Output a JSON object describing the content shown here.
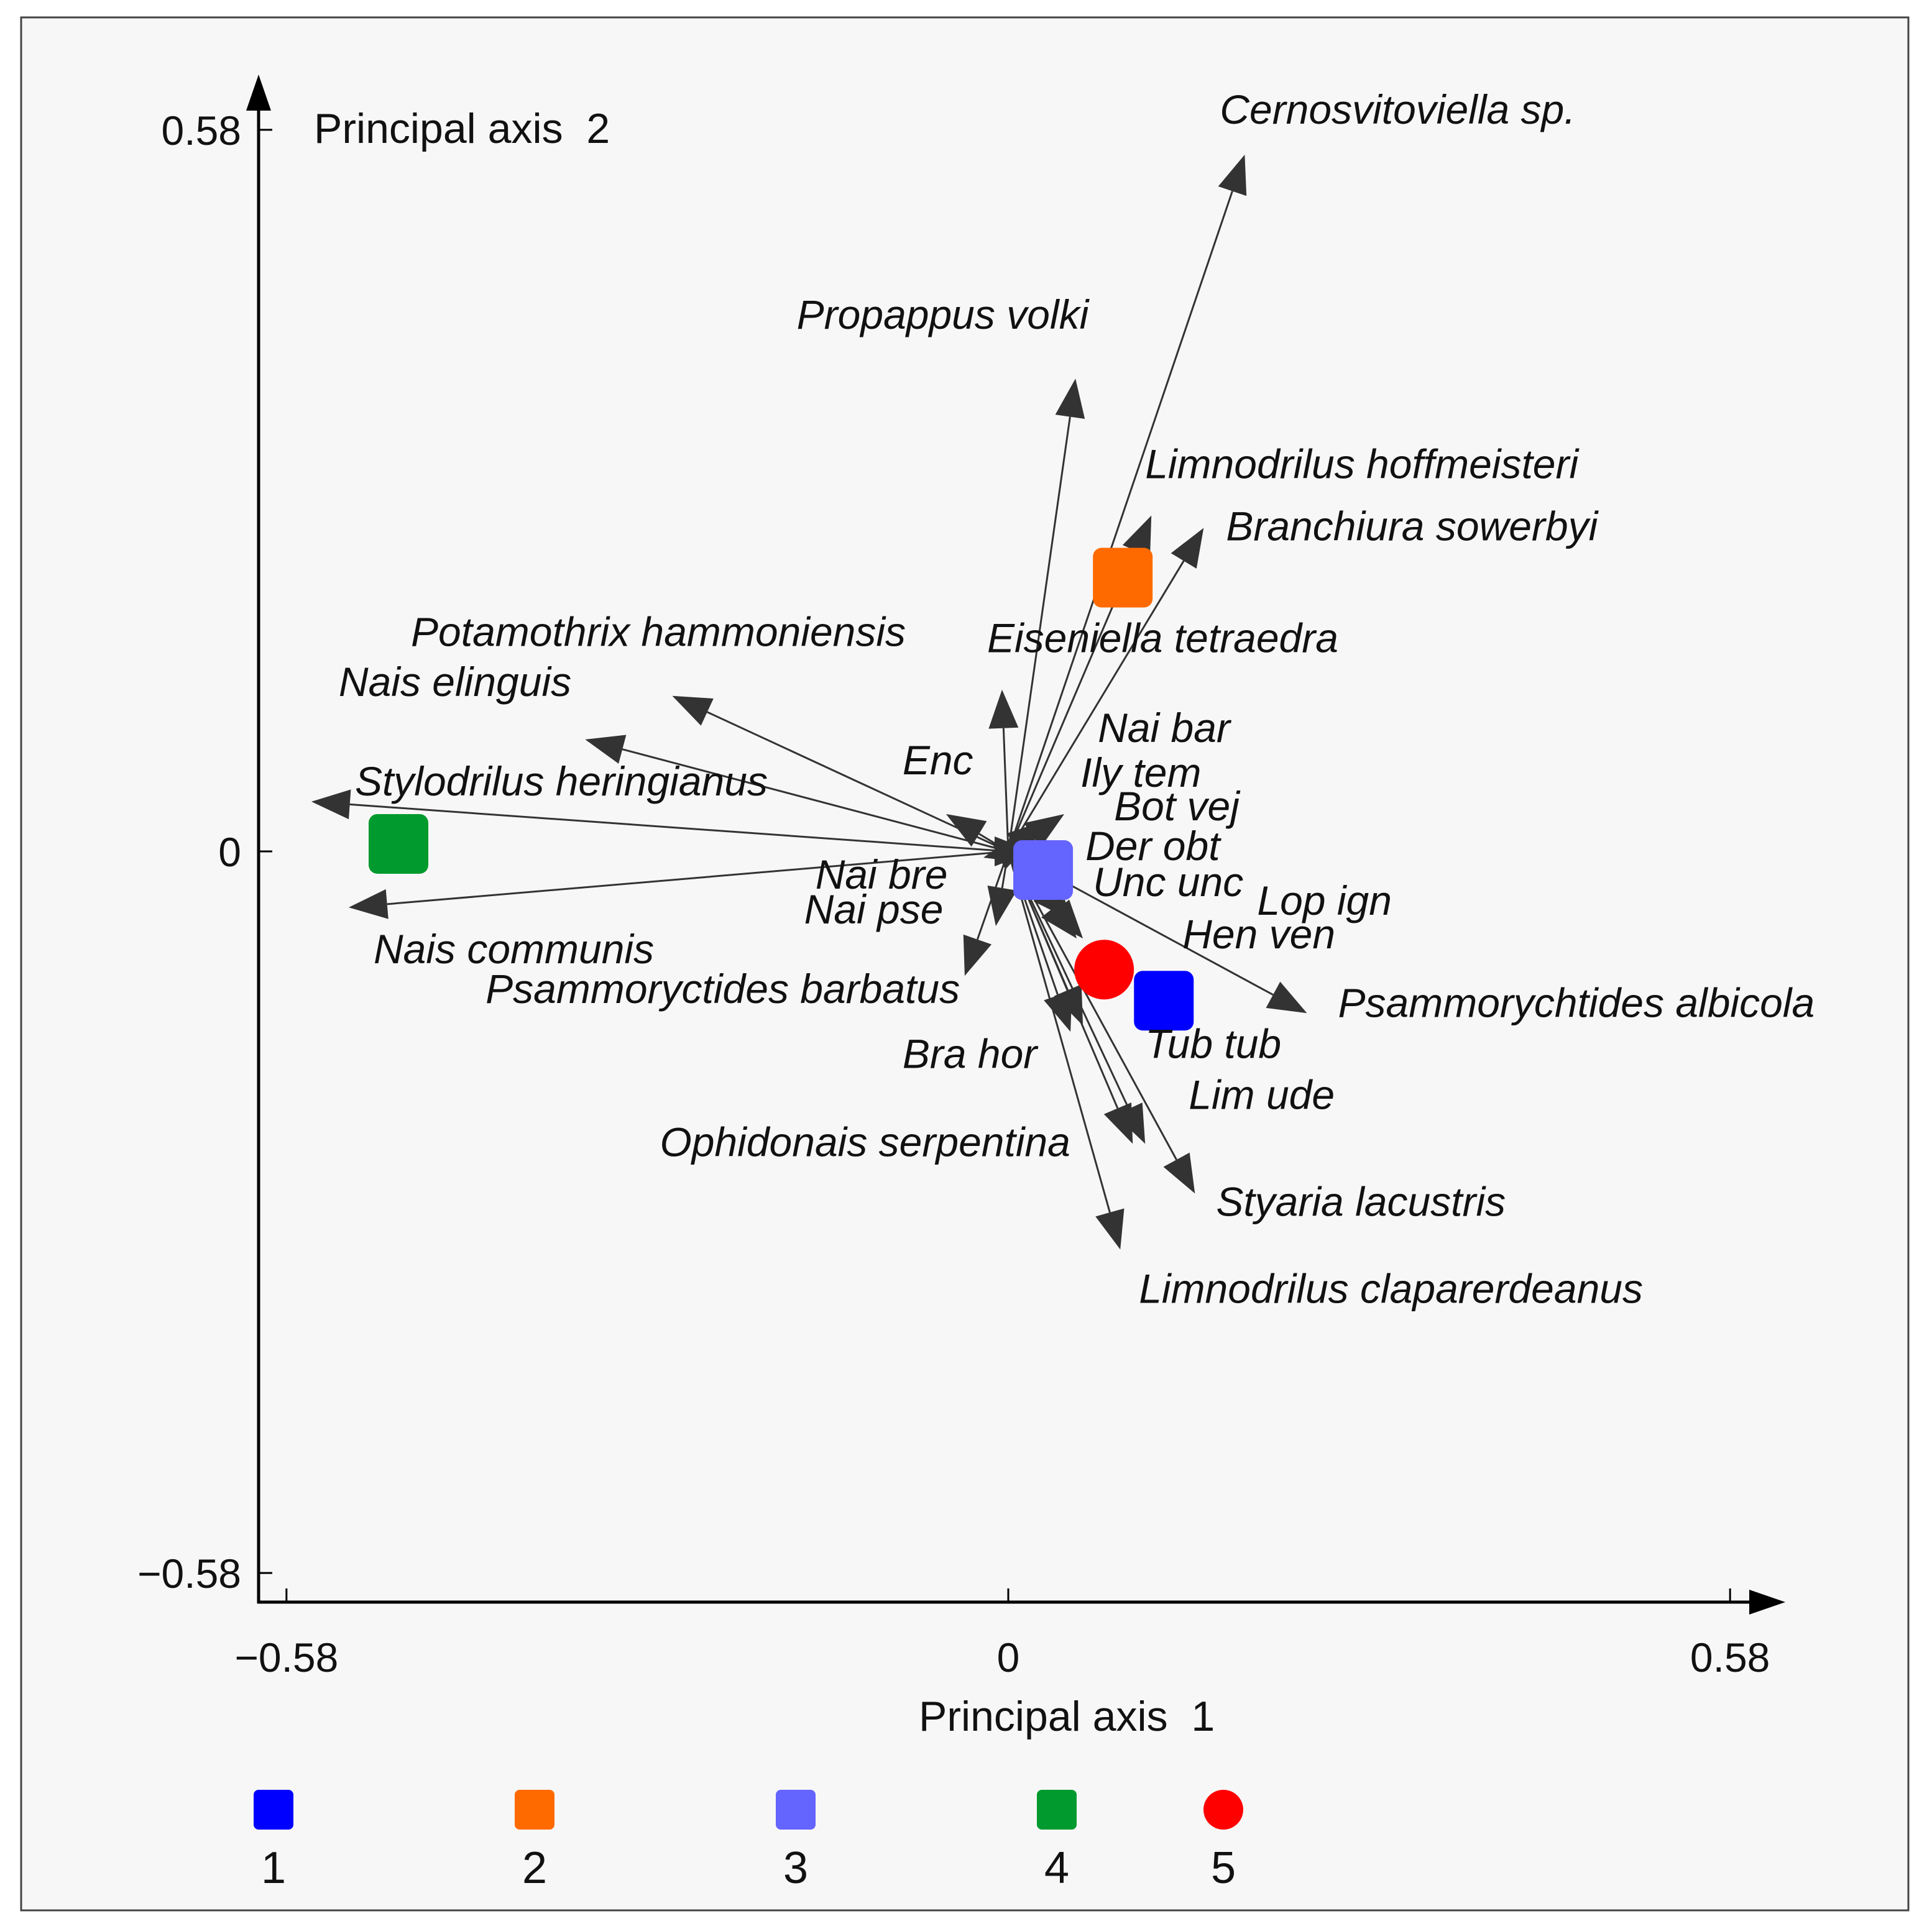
{
  "chart_data": {
    "type": "scatter",
    "subtype": "pca-biplot",
    "xlabel": "Principal axis  1",
    "ylabel": "Principal axis  2",
    "xlim": [
      -0.6,
      0.62
    ],
    "ylim": [
      -0.6,
      0.62
    ],
    "x_ticks": [
      {
        "value": -0.58,
        "label": "−0.58"
      },
      {
        "value": 0,
        "label": "0"
      },
      {
        "value": 0.58,
        "label": "0.58"
      }
    ],
    "y_ticks": [
      {
        "value": 0.58,
        "label": "0.58"
      },
      {
        "value": 0,
        "label": "0"
      },
      {
        "value": -0.58,
        "label": "−0.58"
      }
    ],
    "species_vectors": [
      {
        "name": "Cernosvitoviella sp.",
        "x": 0.19,
        "y": 0.56,
        "lx": 0.17,
        "ly": 0.585
      },
      {
        "name": "Propappus volki",
        "x": 0.054,
        "y": 0.38,
        "lx": -0.17,
        "ly": 0.42
      },
      {
        "name": "Limnodrilus hoffmeisteri",
        "x": 0.115,
        "y": 0.27,
        "lx": 0.11,
        "ly": 0.3
      },
      {
        "name": "Branchiura sowerbyi",
        "x": 0.157,
        "y": 0.26,
        "lx": 0.175,
        "ly": 0.25
      },
      {
        "name": "Eiseniella tetraedra",
        "x": -0.005,
        "y": 0.13,
        "lx": -0.017,
        "ly": 0.16
      },
      {
        "name": "Potamothrix hammoniensis",
        "x": -0.27,
        "y": 0.125,
        "lx": -0.48,
        "ly": 0.165
      },
      {
        "name": "Nais elinguis",
        "x": -0.34,
        "y": 0.09,
        "lx": -0.538,
        "ly": 0.125
      },
      {
        "name": "Stylodrilus heringianus",
        "x": -0.56,
        "y": 0.04,
        "lx": -0.525,
        "ly": 0.045
      },
      {
        "name": "Nais communis",
        "x": -0.53,
        "y": -0.045,
        "lx": -0.51,
        "ly": -0.09
      },
      {
        "name": "Enc",
        "x": -0.05,
        "y": 0.03,
        "lx": -0.085,
        "ly": 0.062
      },
      {
        "name": "Nai bar",
        "x": 0.045,
        "y": 0.03,
        "lx": 0.072,
        "ly": 0.088
      },
      {
        "name": "Ily tem",
        "x": 0.03,
        "y": 0.025,
        "lx": 0.058,
        "ly": 0.052
      },
      {
        "name": "Bot vej",
        "x": 0.02,
        "y": 0.01,
        "lx": 0.085,
        "ly": 0.025
      },
      {
        "name": "Der obt",
        "x": 0.02,
        "y": 0.0,
        "lx": 0.062,
        "ly": -0.007
      },
      {
        "name": "Nai bre",
        "x": -0.02,
        "y": -0.005,
        "lx": -0.155,
        "ly": -0.03
      },
      {
        "name": "Nai pse",
        "x": -0.01,
        "y": -0.06,
        "lx": -0.164,
        "ly": -0.058
      },
      {
        "name": "Unc unc",
        "x": 0.05,
        "y": -0.055,
        "lx": 0.068,
        "ly": -0.036
      },
      {
        "name": "Lop ign",
        "x": 0.06,
        "y": -0.07,
        "lx": 0.2,
        "ly": -0.051
      },
      {
        "name": "Hen ven",
        "x": 0.055,
        "y": -0.07,
        "lx": 0.14,
        "ly": -0.078
      },
      {
        "name": "Psammoryctides barbatus",
        "x": -0.035,
        "y": -0.1,
        "lx": -0.42,
        "ly": -0.122
      },
      {
        "name": "Psammorychtides albicola",
        "x": 0.24,
        "y": -0.13,
        "lx": 0.265,
        "ly": -0.133
      },
      {
        "name": "Tub tub",
        "x": 0.06,
        "y": -0.14,
        "lx": 0.11,
        "ly": -0.166
      },
      {
        "name": "Bra hor",
        "x": 0.05,
        "y": -0.145,
        "lx": -0.085,
        "ly": -0.174
      },
      {
        "name": "Lim ude",
        "x": 0.1,
        "y": -0.235,
        "lx": 0.145,
        "ly": -0.207
      },
      {
        "name": "Ophidonais serpentina",
        "x": 0.11,
        "y": -0.235,
        "lx": -0.28,
        "ly": -0.245
      },
      {
        "name": "Styaria lacustris",
        "x": 0.15,
        "y": -0.275,
        "lx": 0.167,
        "ly": -0.293
      },
      {
        "name": "Limnodrilus claparerdeanus",
        "x": 0.09,
        "y": -0.32,
        "lx": 0.105,
        "ly": -0.363
      }
    ],
    "groups": [
      {
        "name": "1",
        "shape": "square",
        "color": "#0000FF",
        "x": 0.125,
        "y": -0.12
      },
      {
        "name": "2",
        "shape": "square",
        "color": "#FF6A00",
        "x": 0.092,
        "y": 0.22
      },
      {
        "name": "3",
        "shape": "square",
        "color": "#6464FF",
        "x": 0.028,
        "y": -0.015
      },
      {
        "name": "4",
        "shape": "square",
        "color": "#009A2E",
        "x": -0.49,
        "y": 0.006
      },
      {
        "name": "5",
        "shape": "circle",
        "color": "#FF0000",
        "x": 0.077,
        "y": -0.095
      }
    ],
    "legend": {
      "placement": "bottom",
      "entries": [
        "1",
        "2",
        "3",
        "4",
        "5"
      ]
    },
    "colors": {
      "arrow": "#333333",
      "axis": "#000000",
      "background": "#F7F7F7",
      "frame": "#444444"
    }
  }
}
